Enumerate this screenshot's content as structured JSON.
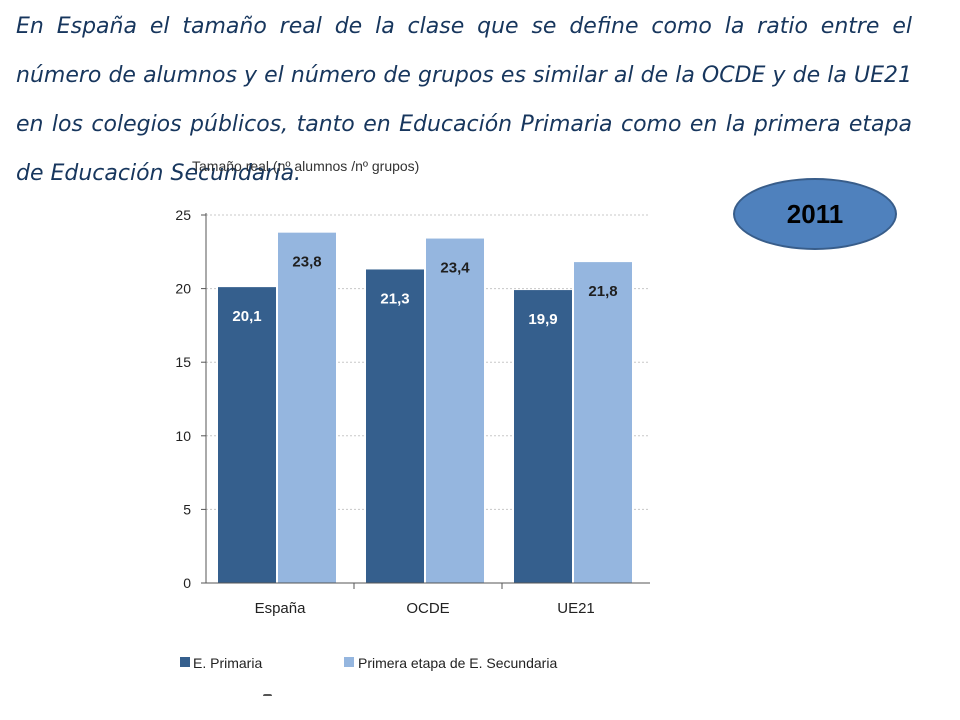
{
  "intro_text": "En España el tamaño real de la clase que se define como la ratio entre el número de alumnos y el número de grupos es similar al de la OCDE y de la UE21 en los colegios públicos, tanto en Educación Primaria como en la primera etapa de Educación Secundaria.",
  "year_badge": "2011",
  "colors": {
    "primary_bar": "#355f8d",
    "secondary_bar": "#95b6df",
    "heading_text": "#17365d",
    "badge_fill": "#4f81bd"
  },
  "chart_data": {
    "type": "bar",
    "title": "Tamaño real (nº alumnos /nº grupos)",
    "categories": [
      "España",
      "OCDE",
      "UE21"
    ],
    "series": [
      {
        "name": "E. Primaria",
        "values": [
          20.1,
          21.3,
          19.9
        ],
        "labels": [
          "20,1",
          "21,3",
          "19,9"
        ],
        "color": "#355f8d"
      },
      {
        "name": "Primera etapa de E. Secundaria",
        "values": [
          23.8,
          23.4,
          21.8
        ],
        "labels": [
          "23,8",
          "23,4",
          "21,8"
        ],
        "color": "#95b6df"
      }
    ],
    "ylim": [
      0,
      25
    ],
    "yticks": [
      0,
      5,
      10,
      15,
      20,
      25
    ],
    "grid": true,
    "legend_position": "bottom"
  }
}
